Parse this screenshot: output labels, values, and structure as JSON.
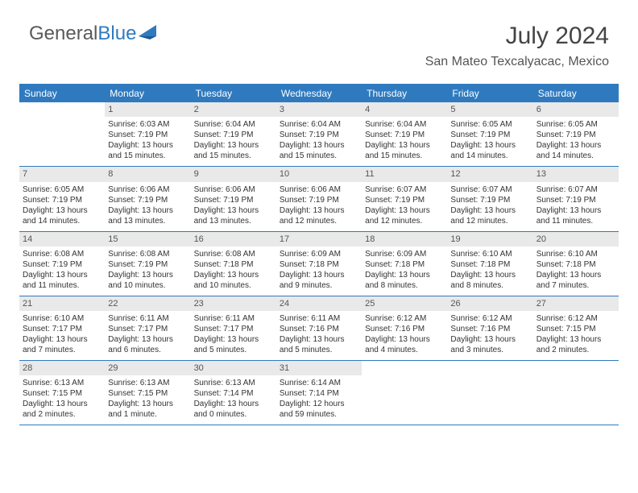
{
  "logo": {
    "word1": "General",
    "word2": "Blue"
  },
  "title": "July 2024",
  "location": "San Mateo Texcalyacac, Mexico",
  "colors": {
    "brand_blue": "#2f7abf",
    "daynum_bg": "#e9e9e9",
    "text_dark": "#333333",
    "text_mid": "#555555",
    "background": "#ffffff"
  },
  "typography": {
    "title_fontsize": 30,
    "location_fontsize": 16,
    "weekday_fontsize": 12,
    "day_fontsize": 10
  },
  "layout": {
    "columns": 7,
    "rows": 5
  },
  "weekdays": [
    "Sunday",
    "Monday",
    "Tuesday",
    "Wednesday",
    "Thursday",
    "Friday",
    "Saturday"
  ],
  "weeks": [
    [
      {
        "empty": true
      },
      {
        "num": "1",
        "sunrise": "Sunrise: 6:03 AM",
        "sunset": "Sunset: 7:19 PM",
        "daylight1": "Daylight: 13 hours",
        "daylight2": "and 15 minutes."
      },
      {
        "num": "2",
        "sunrise": "Sunrise: 6:04 AM",
        "sunset": "Sunset: 7:19 PM",
        "daylight1": "Daylight: 13 hours",
        "daylight2": "and 15 minutes."
      },
      {
        "num": "3",
        "sunrise": "Sunrise: 6:04 AM",
        "sunset": "Sunset: 7:19 PM",
        "daylight1": "Daylight: 13 hours",
        "daylight2": "and 15 minutes."
      },
      {
        "num": "4",
        "sunrise": "Sunrise: 6:04 AM",
        "sunset": "Sunset: 7:19 PM",
        "daylight1": "Daylight: 13 hours",
        "daylight2": "and 15 minutes."
      },
      {
        "num": "5",
        "sunrise": "Sunrise: 6:05 AM",
        "sunset": "Sunset: 7:19 PM",
        "daylight1": "Daylight: 13 hours",
        "daylight2": "and 14 minutes."
      },
      {
        "num": "6",
        "sunrise": "Sunrise: 6:05 AM",
        "sunset": "Sunset: 7:19 PM",
        "daylight1": "Daylight: 13 hours",
        "daylight2": "and 14 minutes."
      }
    ],
    [
      {
        "num": "7",
        "sunrise": "Sunrise: 6:05 AM",
        "sunset": "Sunset: 7:19 PM",
        "daylight1": "Daylight: 13 hours",
        "daylight2": "and 14 minutes."
      },
      {
        "num": "8",
        "sunrise": "Sunrise: 6:06 AM",
        "sunset": "Sunset: 7:19 PM",
        "daylight1": "Daylight: 13 hours",
        "daylight2": "and 13 minutes."
      },
      {
        "num": "9",
        "sunrise": "Sunrise: 6:06 AM",
        "sunset": "Sunset: 7:19 PM",
        "daylight1": "Daylight: 13 hours",
        "daylight2": "and 13 minutes."
      },
      {
        "num": "10",
        "sunrise": "Sunrise: 6:06 AM",
        "sunset": "Sunset: 7:19 PM",
        "daylight1": "Daylight: 13 hours",
        "daylight2": "and 12 minutes."
      },
      {
        "num": "11",
        "sunrise": "Sunrise: 6:07 AM",
        "sunset": "Sunset: 7:19 PM",
        "daylight1": "Daylight: 13 hours",
        "daylight2": "and 12 minutes."
      },
      {
        "num": "12",
        "sunrise": "Sunrise: 6:07 AM",
        "sunset": "Sunset: 7:19 PM",
        "daylight1": "Daylight: 13 hours",
        "daylight2": "and 12 minutes."
      },
      {
        "num": "13",
        "sunrise": "Sunrise: 6:07 AM",
        "sunset": "Sunset: 7:19 PM",
        "daylight1": "Daylight: 13 hours",
        "daylight2": "and 11 minutes."
      }
    ],
    [
      {
        "num": "14",
        "sunrise": "Sunrise: 6:08 AM",
        "sunset": "Sunset: 7:19 PM",
        "daylight1": "Daylight: 13 hours",
        "daylight2": "and 11 minutes."
      },
      {
        "num": "15",
        "sunrise": "Sunrise: 6:08 AM",
        "sunset": "Sunset: 7:19 PM",
        "daylight1": "Daylight: 13 hours",
        "daylight2": "and 10 minutes."
      },
      {
        "num": "16",
        "sunrise": "Sunrise: 6:08 AM",
        "sunset": "Sunset: 7:18 PM",
        "daylight1": "Daylight: 13 hours",
        "daylight2": "and 10 minutes."
      },
      {
        "num": "17",
        "sunrise": "Sunrise: 6:09 AM",
        "sunset": "Sunset: 7:18 PM",
        "daylight1": "Daylight: 13 hours",
        "daylight2": "and 9 minutes."
      },
      {
        "num": "18",
        "sunrise": "Sunrise: 6:09 AM",
        "sunset": "Sunset: 7:18 PM",
        "daylight1": "Daylight: 13 hours",
        "daylight2": "and 8 minutes."
      },
      {
        "num": "19",
        "sunrise": "Sunrise: 6:10 AM",
        "sunset": "Sunset: 7:18 PM",
        "daylight1": "Daylight: 13 hours",
        "daylight2": "and 8 minutes."
      },
      {
        "num": "20",
        "sunrise": "Sunrise: 6:10 AM",
        "sunset": "Sunset: 7:18 PM",
        "daylight1": "Daylight: 13 hours",
        "daylight2": "and 7 minutes."
      }
    ],
    [
      {
        "num": "21",
        "sunrise": "Sunrise: 6:10 AM",
        "sunset": "Sunset: 7:17 PM",
        "daylight1": "Daylight: 13 hours",
        "daylight2": "and 7 minutes."
      },
      {
        "num": "22",
        "sunrise": "Sunrise: 6:11 AM",
        "sunset": "Sunset: 7:17 PM",
        "daylight1": "Daylight: 13 hours",
        "daylight2": "and 6 minutes."
      },
      {
        "num": "23",
        "sunrise": "Sunrise: 6:11 AM",
        "sunset": "Sunset: 7:17 PM",
        "daylight1": "Daylight: 13 hours",
        "daylight2": "and 5 minutes."
      },
      {
        "num": "24",
        "sunrise": "Sunrise: 6:11 AM",
        "sunset": "Sunset: 7:16 PM",
        "daylight1": "Daylight: 13 hours",
        "daylight2": "and 5 minutes."
      },
      {
        "num": "25",
        "sunrise": "Sunrise: 6:12 AM",
        "sunset": "Sunset: 7:16 PM",
        "daylight1": "Daylight: 13 hours",
        "daylight2": "and 4 minutes."
      },
      {
        "num": "26",
        "sunrise": "Sunrise: 6:12 AM",
        "sunset": "Sunset: 7:16 PM",
        "daylight1": "Daylight: 13 hours",
        "daylight2": "and 3 minutes."
      },
      {
        "num": "27",
        "sunrise": "Sunrise: 6:12 AM",
        "sunset": "Sunset: 7:15 PM",
        "daylight1": "Daylight: 13 hours",
        "daylight2": "and 2 minutes."
      }
    ],
    [
      {
        "num": "28",
        "sunrise": "Sunrise: 6:13 AM",
        "sunset": "Sunset: 7:15 PM",
        "daylight1": "Daylight: 13 hours",
        "daylight2": "and 2 minutes."
      },
      {
        "num": "29",
        "sunrise": "Sunrise: 6:13 AM",
        "sunset": "Sunset: 7:15 PM",
        "daylight1": "Daylight: 13 hours",
        "daylight2": "and 1 minute."
      },
      {
        "num": "30",
        "sunrise": "Sunrise: 6:13 AM",
        "sunset": "Sunset: 7:14 PM",
        "daylight1": "Daylight: 13 hours",
        "daylight2": "and 0 minutes."
      },
      {
        "num": "31",
        "sunrise": "Sunrise: 6:14 AM",
        "sunset": "Sunset: 7:14 PM",
        "daylight1": "Daylight: 12 hours",
        "daylight2": "and 59 minutes."
      },
      {
        "empty": true
      },
      {
        "empty": true
      },
      {
        "empty": true
      }
    ]
  ]
}
